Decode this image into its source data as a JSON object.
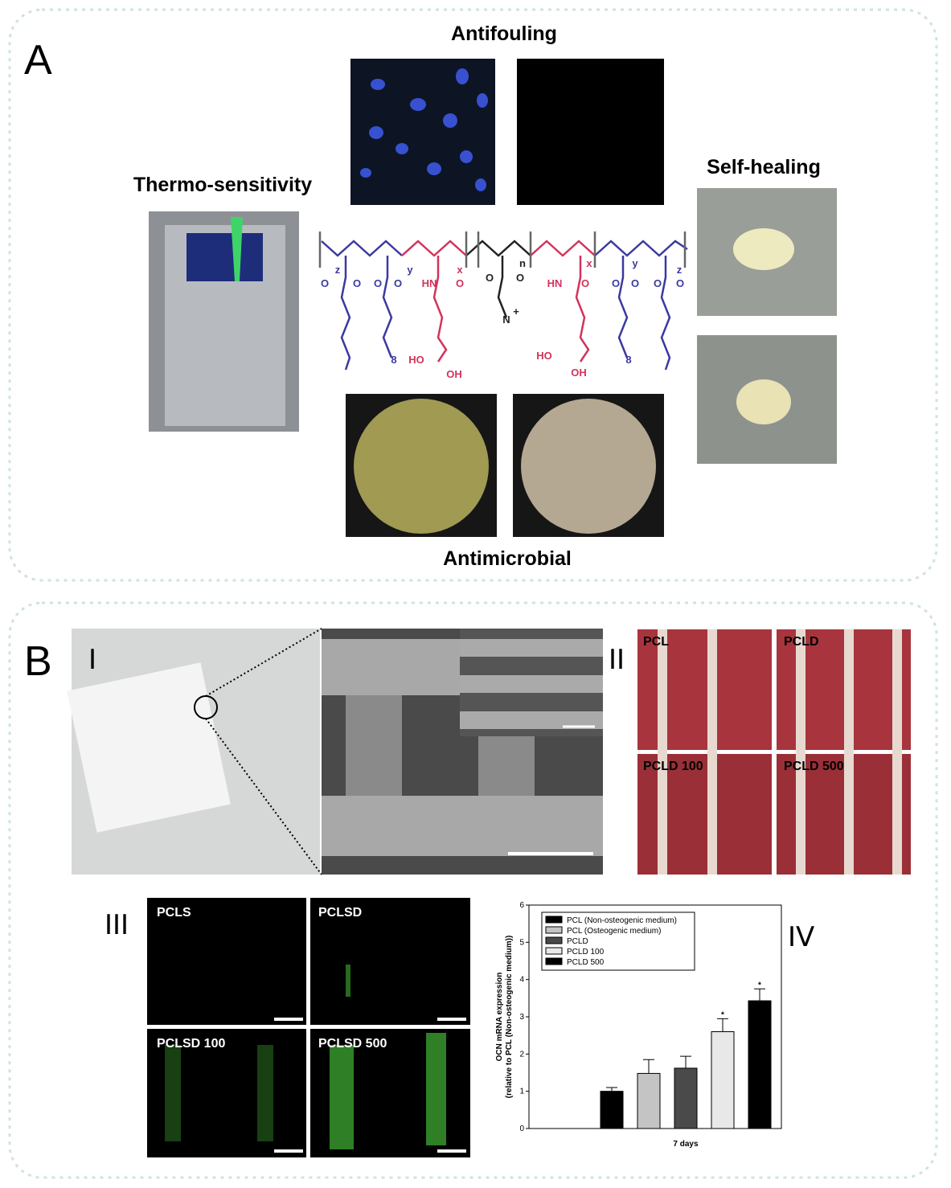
{
  "panel_a": {
    "label": "A",
    "antifouling": "Antifouling",
    "thermo": "Thermo-sensitivity",
    "self_healing": "Self-healing",
    "antimicrobial": "Antimicrobial",
    "structure_labels": [
      "z",
      "y",
      "x",
      "n",
      "x",
      "y",
      "z",
      "O",
      "O",
      "O",
      "O",
      "HN",
      "O",
      "O",
      "O",
      "HN",
      "O",
      "O",
      "O",
      "O",
      "O",
      "N",
      "+",
      "8",
      "8",
      "HO",
      "OH",
      "HO",
      "OH"
    ]
  },
  "panel_b": {
    "label": "B",
    "sub_i": "I",
    "sub_ii": "II",
    "sub_iii": "III",
    "sub_iv": "IV",
    "ii_labels": [
      "PCL",
      "PCLD",
      "PCLD 100",
      "PCLD 500"
    ],
    "iii_labels": [
      "PCLS",
      "PCLSD",
      "PCLSD 100",
      "PCLSD 500"
    ]
  },
  "chart_data": {
    "type": "bar",
    "categories": [
      "7 days"
    ],
    "ylabel": [
      "OCN mRNA expression",
      "(relative to PCL (Non-osteogenic medium))"
    ],
    "ylim": [
      0,
      6
    ],
    "yticks": [
      0,
      1,
      2,
      3,
      4,
      5,
      6
    ],
    "series": [
      {
        "name": "PCL (Non-osteogenic medium)",
        "color": "#000000",
        "values": [
          1.0
        ],
        "errors": [
          0.1
        ]
      },
      {
        "name": "PCL (Osteogenic medium)",
        "color": "#c4c4c4",
        "values": [
          1.48
        ],
        "errors": [
          0.37
        ]
      },
      {
        "name": "PCLD",
        "color": "#4a4a4a",
        "values": [
          1.62
        ],
        "errors": [
          0.32
        ]
      },
      {
        "name": "PCLD 100",
        "color": "#e8e8e8",
        "values": [
          2.6
        ],
        "errors": [
          0.35
        ]
      },
      {
        "name": "PCLD 500",
        "color": "#000000",
        "values": [
          3.43
        ],
        "errors": [
          0.32
        ]
      }
    ],
    "annotations": [
      "*",
      "*"
    ]
  }
}
